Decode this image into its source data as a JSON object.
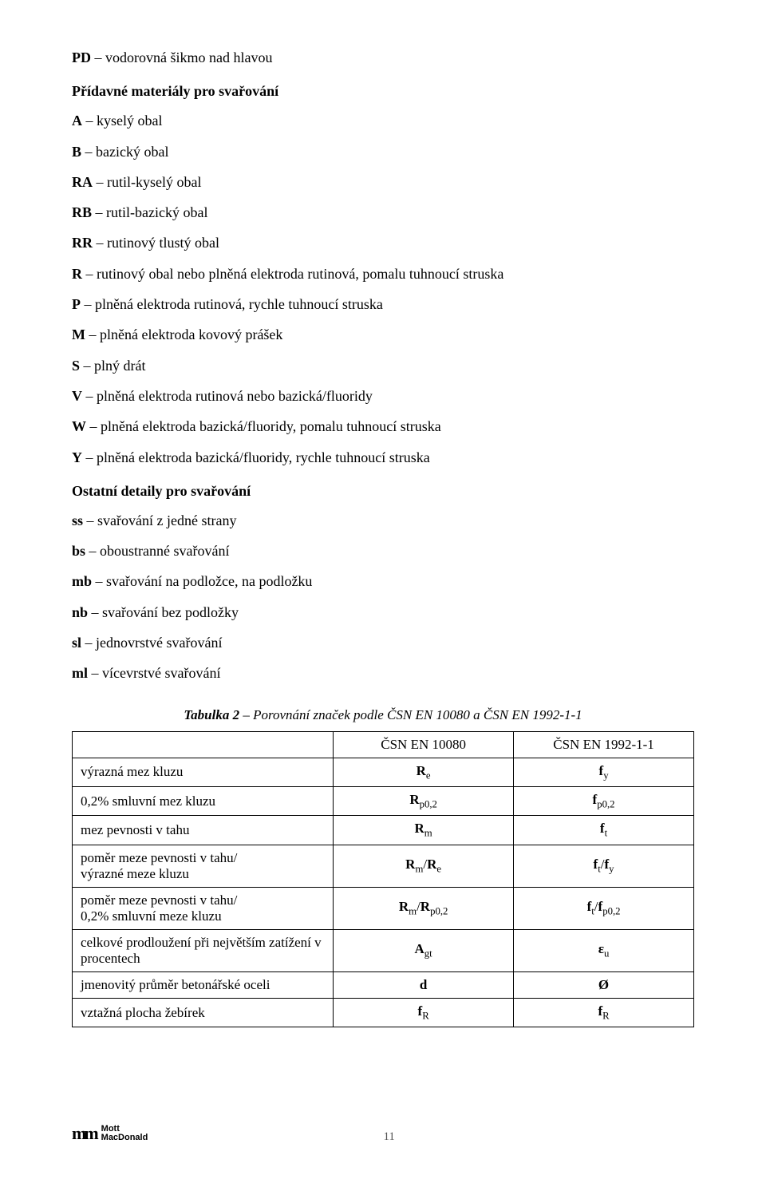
{
  "def_lines": [
    {
      "b": "PD",
      "t": " – vodorovná šikmo nad hlavou"
    }
  ],
  "section1_title": "Přídavné materiály pro svařování",
  "section1_lines": [
    {
      "b": "A",
      "t": " – kyselý obal"
    },
    {
      "b": "B",
      "t": " – bazický obal"
    },
    {
      "b": "RA",
      "t": " – rutil-kyselý obal"
    },
    {
      "b": "RB",
      "t": " – rutil-bazický obal"
    },
    {
      "b": "RR",
      "t": " – rutinový tlustý obal"
    },
    {
      "b": "R",
      "t": " – rutinový obal nebo plněná elektroda rutinová, pomalu tuhnoucí struska"
    },
    {
      "b": "P",
      "t": " – plněná elektroda rutinová, rychle tuhnoucí struska"
    },
    {
      "b": "M",
      "t": " – plněná elektroda kovový prášek"
    },
    {
      "b": "S",
      "t": " – plný drát"
    },
    {
      "b": "V",
      "t": " – plněná elektroda rutinová nebo bazická/fluoridy"
    },
    {
      "b": "W",
      "t": " – plněná elektroda bazická/fluoridy, pomalu tuhnoucí struska"
    },
    {
      "b": "Y",
      "t": " – plněná elektroda bazická/fluoridy, rychle tuhnoucí struska"
    }
  ],
  "section2_title": "Ostatní detaily pro svařování",
  "section2_lines": [
    {
      "b": "ss",
      "t": " – svařování z jedné strany"
    },
    {
      "b": "bs",
      "t": " – oboustranné svařování"
    },
    {
      "b": "mb",
      "t": " – svařování na podložce, na podložku"
    },
    {
      "b": "nb",
      "t": " – svařování bez podložky"
    },
    {
      "b": "sl",
      "t": " – jednovrstvé svařování"
    },
    {
      "b": "ml",
      "t": " – vícevrstvé svařování"
    }
  ],
  "table": {
    "caption_prefix": "Tabulka 2",
    "caption_rest": " – Porovnání značek podle ČSN EN 10080 a ČSN EN 1992-1-1",
    "header": [
      "",
      "ČSN EN 10080",
      "ČSN EN 1992-1-1"
    ],
    "rows": [
      {
        "label": "výrazná mez kluzu",
        "c2": {
          "b": "R",
          "s": "e"
        },
        "c3": {
          "b": "f",
          "s": "y"
        }
      },
      {
        "label": "0,2% smluvní mez kluzu",
        "c2": {
          "b": "R",
          "s": "p0,2"
        },
        "c3": {
          "b": "f",
          "s": "p0,2"
        }
      },
      {
        "label": "mez pevnosti v tahu",
        "c2": {
          "b": "R",
          "s": "m"
        },
        "c3": {
          "b": "f",
          "s": "t"
        }
      },
      {
        "label": "poměr meze pevnosti v tahu/\nvýrazné meze kluzu",
        "c2_ratio": {
          "n1": "R",
          "s1": "m",
          "n2": "R",
          "s2": "e"
        },
        "c3_ratio": {
          "n1": "f",
          "s1": "t",
          "n2": "f",
          "s2": "y"
        }
      },
      {
        "label": "poměr meze pevnosti v tahu/\n0,2% smluvní meze kluzu",
        "c2_ratio": {
          "n1": "R",
          "s1": "m",
          "n2": "R",
          "s2": "p0,2"
        },
        "c3_ratio": {
          "n1": "f",
          "s1": "t",
          "n2": "f",
          "s2": "p0,2"
        }
      },
      {
        "label": "celkové prodloužení při největším zatížení v procentech",
        "c2": {
          "b": "A",
          "s": "gt"
        },
        "c3": {
          "b": "ε",
          "s": "u"
        }
      },
      {
        "label": "jmenovitý průměr betonářské oceli",
        "c2_plain": "d",
        "c3_plain": "Ø"
      },
      {
        "label": "vztažná plocha žebírek",
        "c2": {
          "b": "f",
          "s": "R"
        },
        "c3": {
          "b": "f",
          "s": "R"
        }
      }
    ]
  },
  "footer": {
    "logo_icon": "m",
    "logo_line1": "Mott",
    "logo_line2": "MacDonald",
    "page_number": "11"
  }
}
